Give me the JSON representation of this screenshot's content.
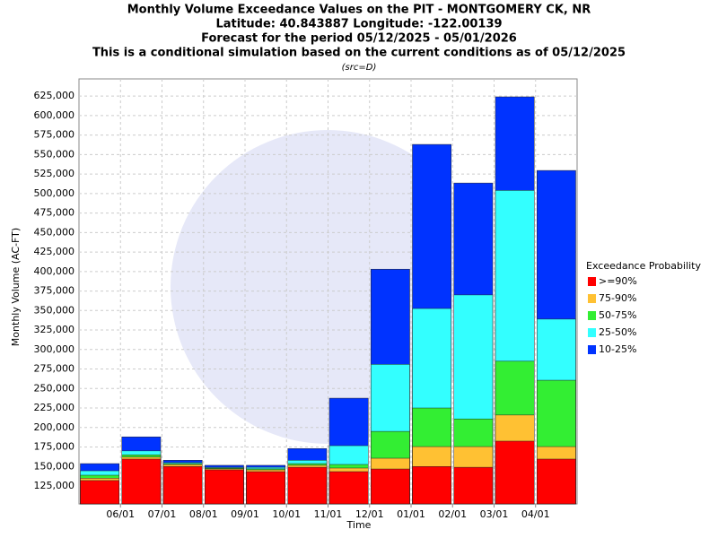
{
  "chart_data": {
    "type": "bar",
    "title": [
      "Monthly Volume Exceedance Values on the PIT - MONTGOMERY CK, NR",
      "Latitude: 40.843887 Longitude: -122.00139",
      "Forecast for the period 05/12/2025 - 05/01/2026",
      "This is a conditional simulation based on the current conditions as of 05/12/2025"
    ],
    "subtitle": "(src=D)",
    "x_label": "Time",
    "y_label": "Monthly Volume (AC-FT)",
    "legend_title": "Exceedance Probability",
    "xtick_labels": [
      "06/01",
      "07/01",
      "08/01",
      "09/01",
      "10/01",
      "11/01",
      "12/01",
      "01/01",
      "02/01",
      "03/01",
      "04/01"
    ],
    "series": [
      {
        "name": "10-25%",
        "color": "#0033ff",
        "values": [
          153700,
          188000,
          158000,
          151500,
          151500,
          173000,
          237600,
          403000,
          563000,
          513500,
          624000,
          529600
        ]
      },
      {
        "name": "25-50%",
        "color": "#33ffff",
        "values": [
          144500,
          170000,
          155000,
          149000,
          149000,
          158000,
          176700,
          281000,
          352600,
          370000,
          504000,
          339000
        ]
      },
      {
        "name": "50-75%",
        "color": "#33ee33",
        "values": [
          138800,
          165000,
          153700,
          148000,
          147000,
          153700,
          152600,
          195000,
          225000,
          211000,
          285000,
          260600
        ]
      },
      {
        "name": "75-90%",
        "color": "#ffc133",
        "values": [
          135000,
          162000,
          152500,
          147000,
          145700,
          151500,
          148000,
          160600,
          175500,
          175500,
          216000,
          175500
        ]
      },
      {
        "name": ">=90%",
        "color": "#ff0000",
        "values": [
          132000,
          159500,
          150000,
          145700,
          143400,
          149000,
          143400,
          146800,
          150000,
          149000,
          182500,
          159500
        ]
      }
    ],
    "ylim": [
      102000,
      647000
    ],
    "yticks": [
      {
        "value": 125000,
        "label": "125,000"
      },
      {
        "value": 150000,
        "label": "150,000"
      },
      {
        "value": 175000,
        "label": "175,000"
      },
      {
        "value": 200000,
        "label": "200,000"
      },
      {
        "value": 225000,
        "label": "225,000"
      },
      {
        "value": 250000,
        "label": "250,000"
      },
      {
        "value": 275000,
        "label": "275,000"
      },
      {
        "value": 300000,
        "label": "300,000"
      },
      {
        "value": 325000,
        "label": "325,000"
      },
      {
        "value": 350000,
        "label": "350,000"
      },
      {
        "value": 375000,
        "label": "375,000"
      },
      {
        "value": 400000,
        "label": "400,000"
      },
      {
        "value": 425000,
        "label": "425,000"
      },
      {
        "value": 450000,
        "label": "450,000"
      },
      {
        "value": 475000,
        "label": "475,000"
      },
      {
        "value": 500000,
        "label": "500,000"
      },
      {
        "value": 525000,
        "label": "525,000"
      },
      {
        "value": 550000,
        "label": "550,000"
      },
      {
        "value": 575000,
        "label": "575,000"
      },
      {
        "value": 600000,
        "label": "600,000"
      },
      {
        "value": 625000,
        "label": "625,000"
      }
    ],
    "grid": true
  }
}
